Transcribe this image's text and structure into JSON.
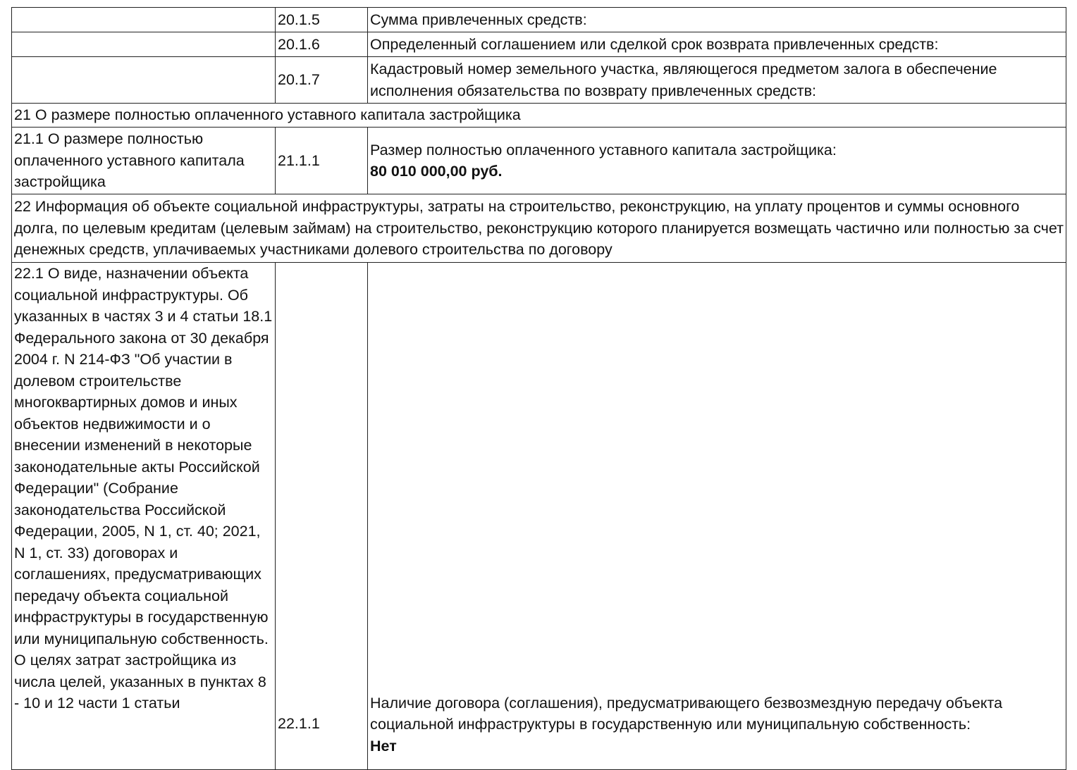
{
  "rows": [
    {
      "code": "20.1.5",
      "text": "Сумма привлеченных средств:"
    },
    {
      "code": "20.1.6",
      "text": "Определенный соглашением или сделкой срок возврата привлеченных средств:"
    },
    {
      "code": "20.1.7",
      "text": "Кадастровый номер земельного участка, являющегося предметом залога в обеспечение исполнения обязательства по возврату привлеченных средств:"
    }
  ],
  "section21": {
    "heading": "21 О размере полностью оплаченного уставного капитала застройщика",
    "sub": "21.1 О размере полностью оплаченного уставного капитала застройщика",
    "code": "21.1.1",
    "label": "Размер полностью оплаченного уставного капитала застройщика:",
    "value": "80 010 000,00 руб."
  },
  "section22": {
    "heading": "22 Информация об объекте социальной инфраструктуры, затраты на строительство, реконструкцию, на уплату процентов и суммы основного долга, по целевым кредитам (целевым займам) на строительство, реконструкцию которого планируется возмещать частично или полностью за счет денежных средств, уплачиваемых участниками долевого строительства по договору",
    "sub": "22.1 О виде, назначении объекта социальной инфраструктуры. Об указанных в частях 3 и 4 статьи 18.1 Федерального закона от 30 декабря 2004 г. N 214-ФЗ \"Об участии в долевом строительстве многоквартирных домов и иных объектов недвижимости и о внесении изменений в некоторые законодательные акты Российской Федерации\" (Собрание законодательства Российской Федерации, 2005, N 1, ст. 40; 2021, N 1, ст. 33) договорах и соглашениях, предусматривающих передачу объекта социальной инфраструктуры в государственную или муниципальную собственность. О целях затрат застройщика из числа целей, указанных в пунктах 8 - 10 и 12 части 1 статьи",
    "code": "22.1.1",
    "label": "Наличие договора (соглашения), предусматривающего безвозмездную передачу объекта социальной инфраструктуры в государственную или муниципальную собственность:",
    "value": "Нет"
  }
}
